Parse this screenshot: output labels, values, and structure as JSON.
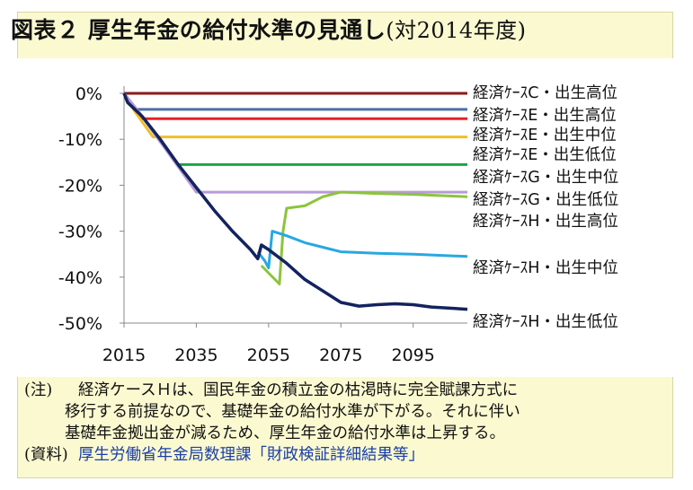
{
  "title": {
    "main": "図表２ 厚生年金の給付水準の見通し",
    "sub": "(対2014年度)"
  },
  "notes": {
    "note_tag": "(注)",
    "note_line1": "経済ケースＨは、国民年金の積立金の枯渇時に完全賦課方式に",
    "note_line2": "移行する前提なので、基礎年金の給付水準が下がる。それに伴い",
    "note_line3": "基礎年金拠出金が減るため、厚生年金の給付水準は上昇する。",
    "source_tag": "(資料)",
    "source_text": "厚生労働省年金局数理課「財政検証詳細結果等」"
  },
  "colors": {
    "caseC_high": "#8b1a1a",
    "caseE_high": "#4a6fa5",
    "caseE_mid": "#e8202a",
    "caseE_low": "#f2be28",
    "caseG_mid": "#1aa64a",
    "caseG_low": "#b89ad8",
    "caseH_high": "#8cc43c",
    "caseH_mid": "#28a8e0",
    "caseH_low": "#13235e"
  },
  "chart_data": {
    "type": "line",
    "title": "",
    "xlabel": "",
    "ylabel": "",
    "xlim": [
      2015,
      2110
    ],
    "ylim": [
      -50,
      0
    ],
    "x_ticks": [
      2015,
      2035,
      2055,
      2075,
      2095
    ],
    "x_tick_labels": [
      "2015",
      "2035",
      "2055",
      "2075",
      "2095"
    ],
    "y_ticks": [
      0,
      -10,
      -20,
      -30,
      -40,
      -50
    ],
    "y_tick_labels": [
      "0%",
      "-10%",
      "-20%",
      "-30%",
      "-40%",
      "-50%"
    ],
    "grid": false,
    "legend": "right (line-end labels)",
    "series": [
      {
        "name": "経済ｹｰｽC・出生高位",
        "color_key": "caseC_high",
        "x": [
          2015,
          2110
        ],
        "y": [
          0,
          0
        ]
      },
      {
        "name": "経済ｹｰｽE・出生高位",
        "color_key": "caseE_high",
        "x": [
          2015,
          2018,
          2110
        ],
        "y": [
          0,
          -3.5,
          -3.5
        ]
      },
      {
        "name": "経済ｹｰｽE・出生中位",
        "color_key": "caseE_mid",
        "x": [
          2015,
          2020,
          2110
        ],
        "y": [
          0,
          -5.5,
          -5.5
        ]
      },
      {
        "name": "経済ｹｰｽE・出生低位",
        "color_key": "caseE_low",
        "x": [
          2015,
          2018,
          2023,
          2110
        ],
        "y": [
          0,
          -4,
          -9.5,
          -9.5
        ]
      },
      {
        "name": "経済ｹｰｽG・出生中位",
        "color_key": "caseG_mid",
        "x": [
          2015,
          2020,
          2025,
          2030,
          2110
        ],
        "y": [
          0,
          -5,
          -10.5,
          -15.5,
          -15.5
        ]
      },
      {
        "name": "経済ｹｰｽG・出生低位",
        "color_key": "caseG_low",
        "x": [
          2015,
          2020,
          2025,
          2030,
          2035,
          2110
        ],
        "y": [
          0,
          -5,
          -10.5,
          -16,
          -21.5,
          -21.5
        ]
      },
      {
        "name": "経済ｹｰｽH・出生高位",
        "color_key": "caseH_high",
        "x": [
          2053,
          2058,
          2059,
          2060,
          2065,
          2070,
          2075,
          2085,
          2095,
          2110
        ],
        "y": [
          -37.5,
          -41.5,
          -30,
          -25,
          -24.5,
          -22.5,
          -21.5,
          -21.8,
          -22,
          -22.5
        ]
      },
      {
        "name": "経済ｹｰｽH・出生中位",
        "color_key": "caseH_mid",
        "x": [
          2052,
          2054,
          2055,
          2056,
          2060,
          2065,
          2070,
          2075,
          2085,
          2095,
          2110
        ],
        "y": [
          -34.5,
          -36.5,
          -38,
          -30,
          -31,
          -32.5,
          -33.5,
          -34.5,
          -34.8,
          -35,
          -35.5
        ]
      },
      {
        "name": "経済ｹｰｽH・出生低位",
        "color_key": "caseH_low",
        "x": [
          2015,
          2016,
          2020,
          2025,
          2030,
          2035,
          2040,
          2045,
          2050,
          2052,
          2053,
          2055,
          2060,
          2065,
          2070,
          2075,
          2080,
          2085,
          2090,
          2095,
          2100,
          2110
        ],
        "y": [
          0,
          -2,
          -5,
          -10,
          -15.5,
          -20.5,
          -25.5,
          -30,
          -34,
          -36,
          -33,
          -34,
          -37,
          -40.5,
          -43,
          -45.5,
          -46.3,
          -46,
          -45.8,
          -46,
          -46.5,
          -47
        ]
      }
    ]
  }
}
